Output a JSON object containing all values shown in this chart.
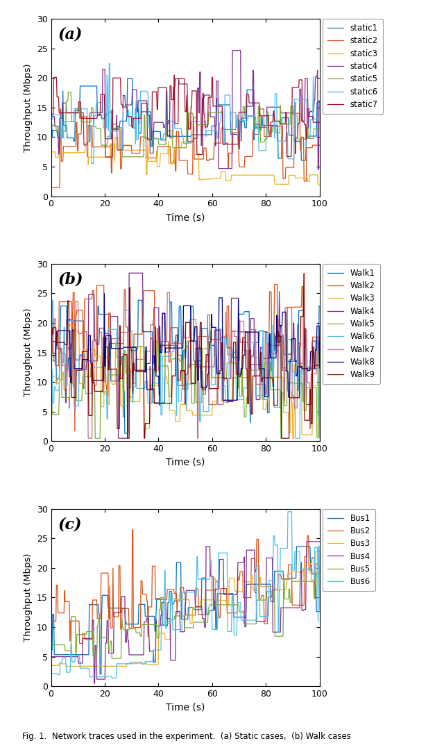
{
  "subplot_labels": [
    "(a)",
    "(b)",
    "(c)"
  ],
  "xlabel": "Time (s)",
  "ylabel": "Throughput (Mbps)",
  "xlim": [
    0,
    100
  ],
  "ylim": [
    0,
    30
  ],
  "yticks": [
    0,
    5,
    10,
    15,
    20,
    25,
    30
  ],
  "xticks": [
    0,
    20,
    40,
    60,
    80,
    100
  ],
  "static_colors": [
    "#0072BD",
    "#D95319",
    "#EDB120",
    "#7E2F8E",
    "#77AC30",
    "#4DBEEE",
    "#A2142F"
  ],
  "static_labels": [
    "static1",
    "static2",
    "static3",
    "static4",
    "static5",
    "static6",
    "static7"
  ],
  "walk_colors": [
    "#0072BD",
    "#D95319",
    "#EDB120",
    "#7E2F8E",
    "#77AC30",
    "#4DBEEE",
    "#C07080",
    "#000080",
    "#8B0000"
  ],
  "walk_labels": [
    "Walk1",
    "Walk2",
    "Walk3",
    "Walk4",
    "Walk5",
    "Walk6",
    "Walk7",
    "Walk8",
    "Walk9"
  ],
  "bus_colors": [
    "#0072BD",
    "#D95319",
    "#EDB120",
    "#7E2F8E",
    "#77AC30",
    "#4DBEEE"
  ],
  "bus_labels": [
    "Bus1",
    "Bus2",
    "Bus3",
    "Bus4",
    "Bus5",
    "Bus6"
  ],
  "caption": "Fig. 1.  Network traces used in the experiment.  (a) Static cases,  (b) Walk cases",
  "figsize": [
    6.4,
    10.8
  ],
  "dpi": 100
}
